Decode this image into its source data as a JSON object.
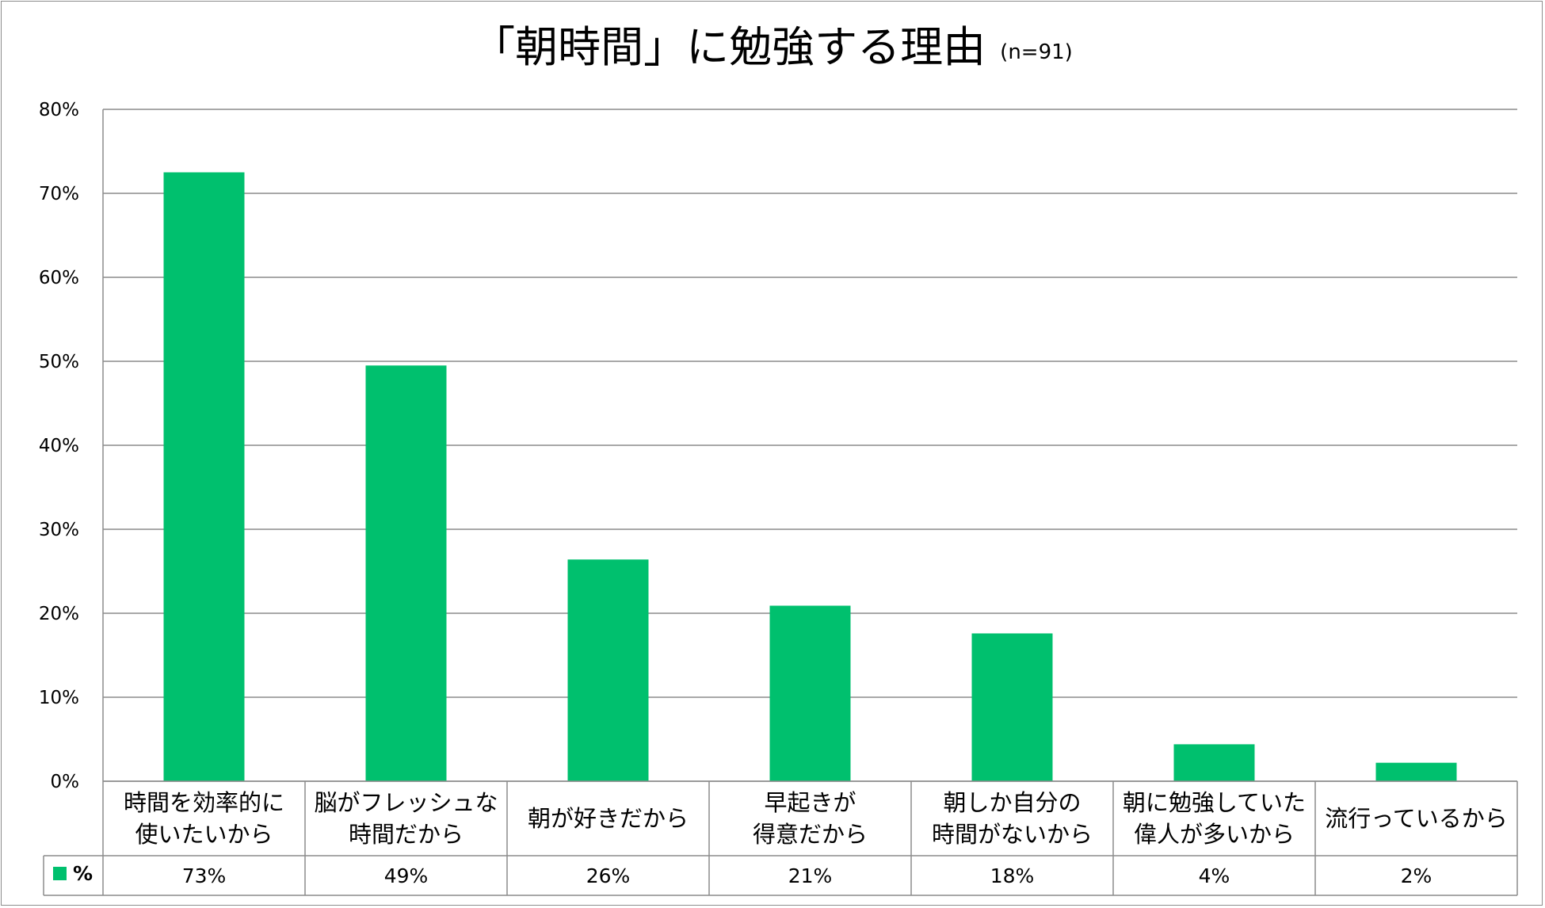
{
  "chart_data": {
    "type": "table",
    "chart_type": "bar",
    "title": "「朝時間」に勉強する理由",
    "subtitle": "(n=91)",
    "categories": [
      [
        "時間を効率的に",
        "使いたいから"
      ],
      [
        "脳がフレッシュな",
        "時間だから"
      ],
      [
        "朝が好きだから"
      ],
      [
        "早起きが",
        "得意だから"
      ],
      [
        "朝しか自分の",
        "時間がないから"
      ],
      [
        "朝に勉強していた",
        "偉人が多いから"
      ],
      [
        "流行っているから"
      ]
    ],
    "series": [
      {
        "name": "%",
        "values": [
          72.5,
          49.5,
          26.4,
          20.9,
          17.6,
          4.4,
          2.2
        ],
        "labels": [
          "73%",
          "49%",
          "26%",
          "21%",
          "18%",
          "4%",
          "2%"
        ],
        "color": "#00c06e"
      }
    ],
    "ylim": [
      0,
      80
    ],
    "yticks": [
      "0%",
      "10%",
      "20%",
      "30%",
      "40%",
      "50%",
      "60%",
      "70%",
      "80%"
    ],
    "grid": true,
    "legend": "data-table"
  }
}
